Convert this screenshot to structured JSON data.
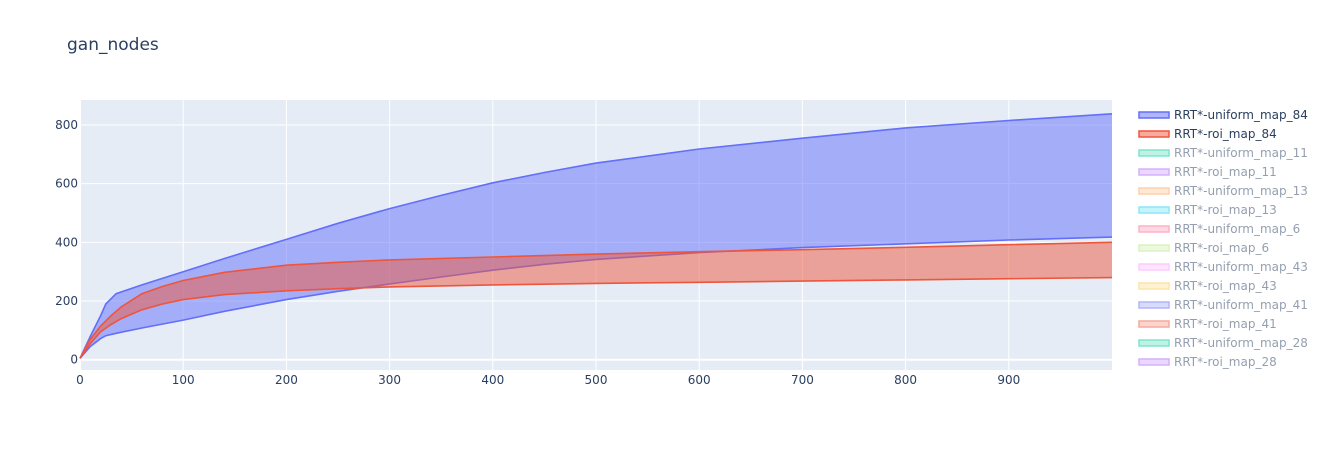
{
  "chart_data": {
    "type": "area",
    "title": "gan_nodes",
    "xlabel": "",
    "ylabel": "",
    "xlim": [
      0,
      1000
    ],
    "ylim": [
      -35,
      885
    ],
    "x_ticks": [
      0,
      100,
      200,
      300,
      400,
      500,
      600,
      700,
      800,
      900
    ],
    "y_ticks": [
      0,
      200,
      400,
      600,
      800
    ],
    "grid": true,
    "legend_position": "right",
    "series": [
      {
        "name": "RRT*-uniform_map_84",
        "color": "#636efa",
        "visible": true,
        "x": [
          0,
          10,
          20,
          25,
          35,
          60,
          100,
          140,
          200,
          250,
          300,
          350,
          400,
          450,
          500,
          600,
          700,
          800,
          900,
          1000
        ],
        "upper": [
          5,
          80,
          150,
          190,
          225,
          255,
          300,
          345,
          410,
          465,
          515,
          560,
          603,
          638,
          670,
          718,
          755,
          790,
          815,
          838
        ],
        "lower": [
          5,
          45,
          72,
          82,
          90,
          108,
          135,
          165,
          205,
          233,
          258,
          282,
          305,
          325,
          342,
          365,
          382,
          395,
          408,
          418
        ]
      },
      {
        "name": "RRT*-roi_map_84",
        "color": "#ef553b",
        "visible": true,
        "x": [
          0,
          10,
          20,
          30,
          40,
          60,
          80,
          100,
          140,
          200,
          250,
          300,
          400,
          500,
          600,
          700,
          800,
          900,
          1000
        ],
        "upper": [
          5,
          70,
          115,
          150,
          180,
          225,
          250,
          270,
          298,
          322,
          332,
          340,
          350,
          360,
          368,
          375,
          383,
          392,
          400
        ],
        "lower": [
          5,
          55,
          95,
          120,
          140,
          170,
          190,
          205,
          222,
          235,
          242,
          248,
          255,
          260,
          264,
          268,
          272,
          276,
          280
        ]
      },
      {
        "name": "RRT*-uniform_map_11",
        "color": "#00cc96",
        "visible": false
      },
      {
        "name": "RRT*-roi_map_11",
        "color": "#ab63fa",
        "visible": false
      },
      {
        "name": "RRT*-uniform_map_13",
        "color": "#ffa15a",
        "visible": false
      },
      {
        "name": "RRT*-roi_map_13",
        "color": "#19d3f3",
        "visible": false
      },
      {
        "name": "RRT*-uniform_map_6",
        "color": "#ff6692",
        "visible": false
      },
      {
        "name": "RRT*-roi_map_6",
        "color": "#b6e880",
        "visible": false
      },
      {
        "name": "RRT*-uniform_map_43",
        "color": "#ff97ff",
        "visible": false
      },
      {
        "name": "RRT*-roi_map_43",
        "color": "#fecb52",
        "visible": false
      },
      {
        "name": "RRT*-uniform_map_41",
        "color": "#636efa",
        "visible": false
      },
      {
        "name": "RRT*-roi_map_41",
        "color": "#ef553b",
        "visible": false
      },
      {
        "name": "RRT*-uniform_map_28",
        "color": "#00cc96",
        "visible": false
      },
      {
        "name": "RRT*-roi_map_28",
        "color": "#ab63fa",
        "visible": false
      }
    ]
  }
}
